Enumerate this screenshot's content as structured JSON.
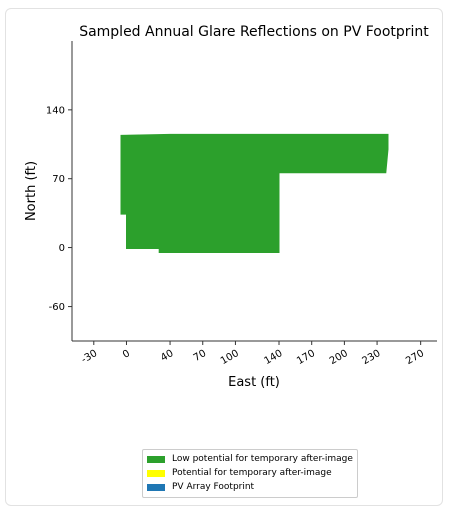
{
  "chart_data": {
    "type": "area",
    "title": "Sampled Annual Glare Reflections on PV Footprint",
    "xlabel": "East (ft)",
    "ylabel": "North (ft)",
    "xlim": [
      -50,
      285
    ],
    "ylim": [
      -95,
      210
    ],
    "xticks": [
      -30,
      0,
      40,
      70,
      100,
      140,
      170,
      200,
      230,
      270
    ],
    "yticks": [
      140,
      70,
      0,
      -60
    ],
    "xtick_labels": [
      "-30",
      "0",
      "40",
      "70",
      "100",
      "140",
      "170",
      "200",
      "230",
      "270"
    ],
    "ytick_labels": [
      "140",
      "70",
      "0",
      "-60"
    ],
    "grid": false,
    "series": [
      {
        "name": "Low potential for temporary after-image",
        "color": "#2ca02c",
        "polygon": [
          [
            -5,
            114
          ],
          [
            40,
            115
          ],
          [
            240,
            115
          ],
          [
            240,
            100
          ],
          [
            238,
            76
          ],
          [
            140,
            76
          ],
          [
            140,
            -5
          ],
          [
            30,
            -5
          ],
          [
            30,
            -1
          ],
          [
            0,
            -1
          ],
          [
            0,
            34
          ],
          [
            -5,
            34
          ]
        ]
      },
      {
        "name": "Potential for temporary after-image",
        "color": "#ffff00",
        "polygon": []
      },
      {
        "name": "PV Array Footprint",
        "color": "#1f77b4",
        "polygon": []
      }
    ],
    "legend_position": "bottom-center"
  }
}
